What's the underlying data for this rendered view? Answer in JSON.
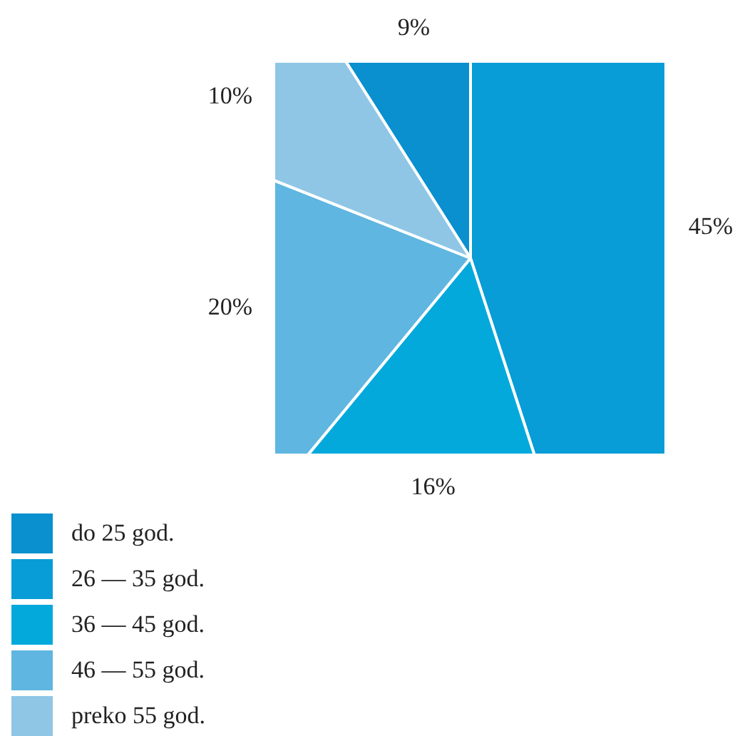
{
  "chart_data": {
    "type": "pie",
    "categories": [
      "do 25 god.",
      "26 — 35 god.",
      "36 — 45 god.",
      "46 — 55 god.",
      "preko 55 god."
    ],
    "values": [
      9,
      45,
      16,
      20,
      10
    ],
    "colors": [
      "#0a8fcf",
      "#089dd6",
      "#04a9dc",
      "#5fb6e0",
      "#8fc6e6"
    ],
    "value_labels": [
      "9%",
      "45%",
      "16%",
      "20%",
      "10%"
    ],
    "legend": "bottom"
  }
}
